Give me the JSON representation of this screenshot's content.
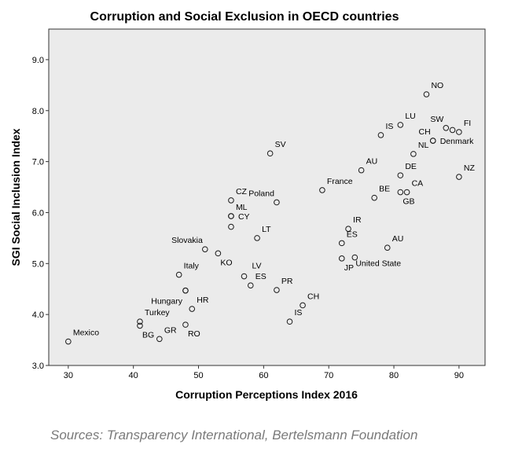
{
  "colors": {
    "plot_background": "#ebebeb",
    "marker_stroke": "#1a1a1a",
    "axis": "#333333",
    "source_text": "#7a7a7a"
  },
  "chart_data": {
    "type": "scatter",
    "title": "Corruption and Social Exclusion in OECD countries",
    "xlabel": "Corruption Perceptions Index  2016",
    "ylabel": "SGI Social Inclusion Index",
    "xlim": [
      27,
      94
    ],
    "ylim": [
      3.0,
      9.6
    ],
    "xticks": [
      30,
      40,
      50,
      60,
      70,
      80,
      90
    ],
    "yticks": [
      3.0,
      4.0,
      5.0,
      6.0,
      7.0,
      8.0,
      9.0
    ],
    "tick_decimals_y": 1,
    "grid": false,
    "marker": "hollow-circle",
    "points": [
      {
        "label": "NO",
        "x": 85,
        "y": 8.32,
        "pos": "top-right"
      },
      {
        "label": "LU",
        "x": 81,
        "y": 7.72,
        "pos": "top-right"
      },
      {
        "label": "SW",
        "x": 88,
        "y": 7.66,
        "pos": "top-left"
      },
      {
        "label": "FI",
        "x": 90,
        "y": 7.58,
        "pos": "top-right"
      },
      {
        "label": "",
        "x": 89,
        "y": 7.62,
        "pos": "none"
      },
      {
        "label": "IS",
        "x": 78,
        "y": 7.52,
        "pos": "top-right"
      },
      {
        "label": "CH",
        "x": 86,
        "y": 7.41,
        "pos": "top-left"
      },
      {
        "label": "Denmark",
        "x": 86,
        "y": 7.41,
        "pos": "right"
      },
      {
        "label": "NL",
        "x": 83,
        "y": 7.15,
        "pos": "top-right"
      },
      {
        "label": "SV",
        "x": 61,
        "y": 7.16,
        "pos": "top-right"
      },
      {
        "label": "AU",
        "x": 75,
        "y": 6.83,
        "pos": "top-right"
      },
      {
        "label": "DE",
        "x": 81,
        "y": 6.73,
        "pos": "top-right"
      },
      {
        "label": "NZ",
        "x": 90,
        "y": 6.7,
        "pos": "top-right"
      },
      {
        "label": "CA",
        "x": 82,
        "y": 6.4,
        "pos": "top-right"
      },
      {
        "label": "GB",
        "x": 81,
        "y": 6.4,
        "pos": "bottom-right"
      },
      {
        "label": "BE",
        "x": 77,
        "y": 6.29,
        "pos": "top-right"
      },
      {
        "label": "France",
        "x": 69,
        "y": 6.44,
        "pos": "top-right"
      },
      {
        "label": "Poland",
        "x": 62,
        "y": 6.2,
        "pos": "top-left"
      },
      {
        "label": "CZ",
        "x": 55,
        "y": 6.24,
        "pos": "top-right"
      },
      {
        "label": "ML",
        "x": 55,
        "y": 5.93,
        "pos": "top-right"
      },
      {
        "label": "CY",
        "x": 55,
        "y": 5.93,
        "pos": "right"
      },
      {
        "label": "",
        "x": 55,
        "y": 5.72,
        "pos": "none"
      },
      {
        "label": "LT",
        "x": 59,
        "y": 5.5,
        "pos": "top-right"
      },
      {
        "label": "IR",
        "x": 73,
        "y": 5.68,
        "pos": "top-right"
      },
      {
        "label": "ES",
        "x": 72,
        "y": 5.4,
        "pos": "top-right"
      },
      {
        "label": "AU",
        "x": 79,
        "y": 5.31,
        "pos": "top-right"
      },
      {
        "label": "Slovakia",
        "x": 51,
        "y": 5.28,
        "pos": "top-left"
      },
      {
        "label": "KO",
        "x": 53,
        "y": 5.2,
        "pos": "bottom-right"
      },
      {
        "label": "LV",
        "x": 57,
        "y": 4.75,
        "pos": "top-right-far"
      },
      {
        "label": "JP",
        "x": 72,
        "y": 5.1,
        "pos": "bottom-right"
      },
      {
        "label": "United State",
        "x": 74,
        "y": 5.12,
        "pos": "right-low"
      },
      {
        "label": "Italy",
        "x": 47,
        "y": 4.78,
        "pos": "top-right"
      },
      {
        "label": "ES",
        "x": 58,
        "y": 4.57,
        "pos": "top-right"
      },
      {
        "label": "PR",
        "x": 62,
        "y": 4.48,
        "pos": "top-right"
      },
      {
        "label": "",
        "x": 48,
        "y": 4.47,
        "pos": "none"
      },
      {
        "label": "Hungary",
        "x": 48,
        "y": 4.47,
        "pos": "bottom-left"
      },
      {
        "label": "HR",
        "x": 49,
        "y": 4.11,
        "pos": "top-right"
      },
      {
        "label": "CH",
        "x": 66,
        "y": 4.18,
        "pos": "top-right"
      },
      {
        "label": "IS",
        "x": 64,
        "y": 3.86,
        "pos": "top-right"
      },
      {
        "label": "Turkey",
        "x": 41,
        "y": 3.86,
        "pos": "top-right"
      },
      {
        "label": "BG",
        "x": 41,
        "y": 3.78,
        "pos": "bottom-right"
      },
      {
        "label": "GR",
        "x": 44,
        "y": 3.52,
        "pos": "top-right"
      },
      {
        "label": "RO",
        "x": 48,
        "y": 3.8,
        "pos": "bottom-right"
      },
      {
        "label": "Mexico",
        "x": 30,
        "y": 3.47,
        "pos": "top-right"
      }
    ]
  },
  "source_text": "Sources: Transparency International, Bertelsmann Foundation"
}
